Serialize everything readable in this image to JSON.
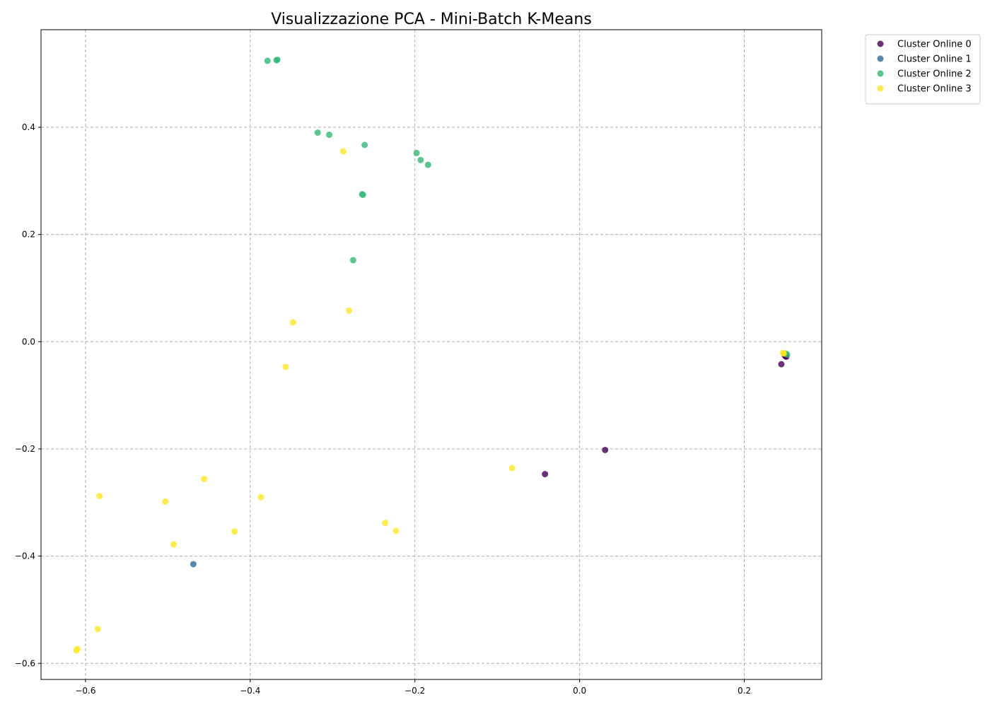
{
  "chart_data": {
    "type": "scatter",
    "title": "Visualizzazione PCA - Mini-Batch K-Means",
    "xlabel": "",
    "ylabel": "",
    "xlim": [
      -0.654,
      0.294
    ],
    "ylim": [
      -0.63,
      0.582
    ],
    "grid": true,
    "legend_position": "outside-top-right",
    "x_ticks": [
      -0.6,
      -0.4,
      -0.2,
      0.0,
      0.2
    ],
    "x_tick_labels": [
      "−0.6",
      "−0.4",
      "−0.2",
      "0.0",
      "0.2"
    ],
    "y_ticks": [
      0.4,
      0.2,
      0.0,
      -0.2,
      -0.4,
      -0.6
    ],
    "y_tick_labels": [
      "0.4",
      "0.2",
      "0.0",
      "−0.2",
      "−0.4",
      "−0.6"
    ],
    "series": [
      {
        "name": "Cluster Online 0",
        "color": "#440154",
        "points": [
          [
            0.031,
            -0.202
          ],
          [
            -0.042,
            -0.247
          ],
          [
            0.245,
            -0.042
          ],
          [
            0.25,
            -0.027
          ],
          [
            0.251,
            -0.028
          ],
          [
            0.249,
            -0.025
          ]
        ]
      },
      {
        "name": "Cluster Online 1",
        "color": "#31688e",
        "points": [
          [
            -0.469,
            -0.415
          ]
        ]
      },
      {
        "name": "Cluster Online 2",
        "color": "#35b779",
        "points": [
          [
            -0.379,
            0.524
          ],
          [
            -0.368,
            0.525
          ],
          [
            -0.367,
            0.526
          ],
          [
            -0.318,
            0.39
          ],
          [
            -0.304,
            0.386
          ],
          [
            -0.261,
            0.367
          ],
          [
            -0.198,
            0.352
          ],
          [
            -0.193,
            0.339
          ],
          [
            -0.184,
            0.33
          ],
          [
            -0.264,
            0.275
          ],
          [
            -0.263,
            0.274
          ],
          [
            -0.275,
            0.152
          ],
          [
            0.25,
            -0.022
          ],
          [
            0.252,
            -0.024
          ]
        ]
      },
      {
        "name": "Cluster Online 3",
        "color": "#fde725",
        "points": [
          [
            -0.287,
            0.355
          ],
          [
            -0.28,
            0.058
          ],
          [
            -0.348,
            0.036
          ],
          [
            -0.357,
            -0.047
          ],
          [
            -0.082,
            -0.236
          ],
          [
            -0.456,
            -0.256
          ],
          [
            -0.583,
            -0.288
          ],
          [
            -0.503,
            -0.298
          ],
          [
            -0.387,
            -0.29
          ],
          [
            -0.419,
            -0.354
          ],
          [
            -0.236,
            -0.338
          ],
          [
            -0.223,
            -0.353
          ],
          [
            -0.493,
            -0.378
          ],
          [
            -0.585,
            -0.536
          ],
          [
            -0.61,
            -0.573
          ],
          [
            -0.611,
            -0.576
          ],
          [
            0.247,
            -0.021
          ],
          [
            0.248,
            -0.022
          ]
        ]
      }
    ]
  }
}
